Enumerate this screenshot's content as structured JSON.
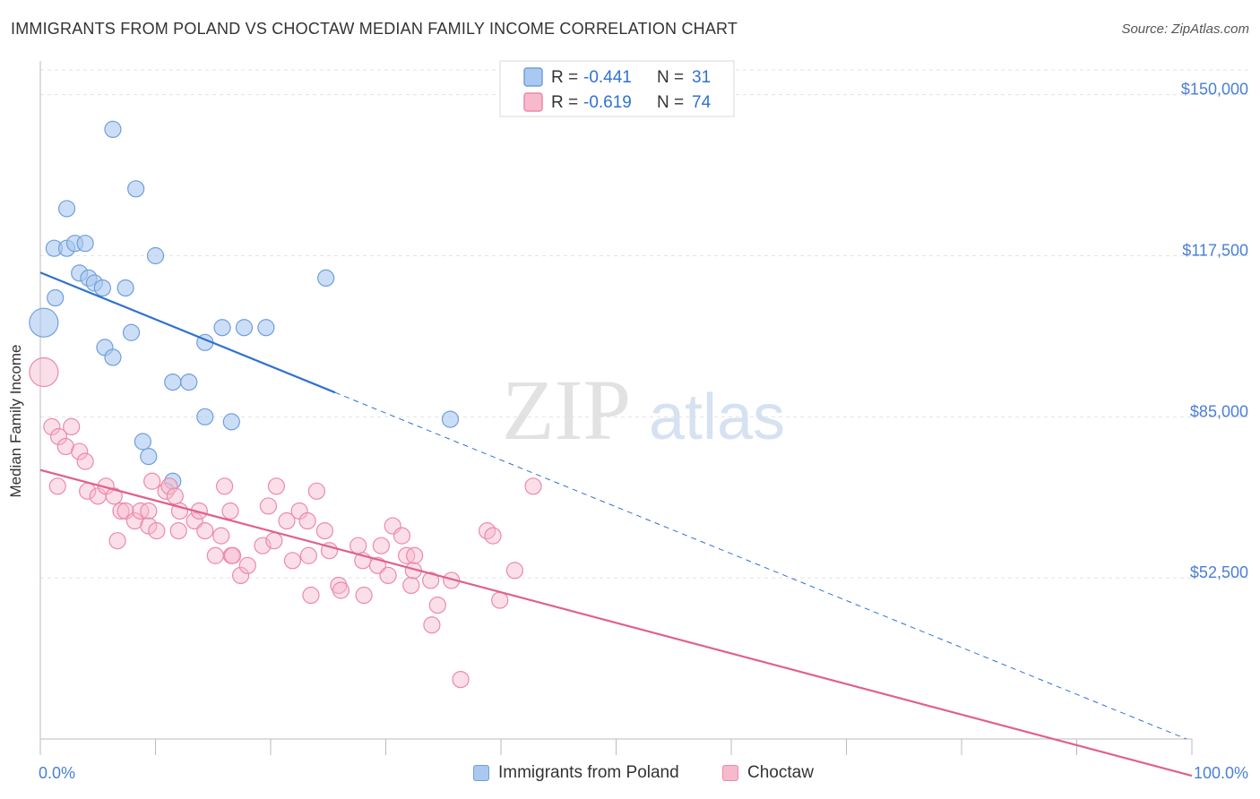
{
  "header": {
    "title": "IMMIGRANTS FROM POLAND VS CHOCTAW MEDIAN FAMILY INCOME CORRELATION CHART",
    "source": "Source: ZipAtlas.com"
  },
  "watermark": {
    "zip": "ZIP",
    "atlas": "atlas"
  },
  "legend": {
    "rows": [
      {
        "r_label": "R = ",
        "r_value": "-0.441",
        "n_label": "N = ",
        "n_value": "31"
      },
      {
        "r_label": "R = ",
        "r_value": "-0.619",
        "n_label": "N = ",
        "n_value": "74"
      }
    ]
  },
  "colors": {
    "poland_fill": "#aac8f0",
    "poland_stroke": "#6f9fdc",
    "poland_line": "#2f72d0",
    "choctaw_fill": "#f7b9cc",
    "choctaw_stroke": "#ec8aa8",
    "choctaw_line": "#e0608d",
    "axis_text": "#4a7fd4"
  },
  "chart_data": {
    "type": "scatter",
    "title": "IMMIGRANTS FROM POLAND VS CHOCTAW MEDIAN FAMILY INCOME CORRELATION CHART",
    "xlabel": "",
    "ylabel": "Median Family Income",
    "xlim": [
      0,
      100
    ],
    "ylim": [
      20000,
      155000
    ],
    "x_tick_labels": [
      "0.0%",
      "100.0%"
    ],
    "y_ticks": [
      52500,
      85000,
      117500,
      150000
    ],
    "y_tick_labels": [
      "$52,500",
      "$85,000",
      "$117,500",
      "$150,000"
    ],
    "grid": true,
    "series": [
      {
        "name": "Immigrants from Poland",
        "r": -0.441,
        "n": 31,
        "points": [
          [
            0.3,
            104000,
            16
          ],
          [
            1.2,
            119000,
            9
          ],
          [
            1.3,
            109000,
            9
          ],
          [
            2.3,
            119000,
            9
          ],
          [
            2.3,
            127000,
            9
          ],
          [
            3.0,
            120000,
            9
          ],
          [
            3.4,
            114000,
            9
          ],
          [
            3.9,
            120000,
            9
          ],
          [
            4.2,
            113000,
            9
          ],
          [
            4.7,
            112000,
            9
          ],
          [
            5.4,
            111000,
            9
          ],
          [
            5.6,
            99000,
            9
          ],
          [
            6.3,
            143000,
            9
          ],
          [
            6.3,
            97000,
            9
          ],
          [
            7.4,
            111000,
            9
          ],
          [
            7.9,
            102000,
            9
          ],
          [
            8.3,
            131000,
            9
          ],
          [
            8.9,
            80000,
            9
          ],
          [
            9.4,
            77000,
            9
          ],
          [
            10.0,
            117500,
            9
          ],
          [
            11.5,
            92000,
            9
          ],
          [
            11.5,
            72000,
            9
          ],
          [
            12.9,
            92000,
            9
          ],
          [
            14.3,
            100000,
            9
          ],
          [
            14.3,
            85000,
            9
          ],
          [
            15.8,
            103000,
            9
          ],
          [
            16.6,
            84000,
            9
          ],
          [
            17.7,
            103000,
            9
          ],
          [
            19.6,
            103000,
            9
          ],
          [
            24.8,
            113000,
            9
          ],
          [
            35.6,
            84500,
            9
          ]
        ]
      },
      {
        "name": "Choctaw",
        "r": -0.619,
        "n": 74,
        "points": [
          [
            0.3,
            94000,
            16
          ],
          [
            1.0,
            83000,
            9
          ],
          [
            1.5,
            71000,
            9
          ],
          [
            1.6,
            81000,
            9
          ],
          [
            2.2,
            79000,
            9
          ],
          [
            2.7,
            83000,
            9
          ],
          [
            3.4,
            78000,
            9
          ],
          [
            3.9,
            76000,
            9
          ],
          [
            4.1,
            70000,
            9
          ],
          [
            5.0,
            69000,
            9
          ],
          [
            5.7,
            71000,
            9
          ],
          [
            6.4,
            69000,
            9
          ],
          [
            6.7,
            60000,
            9
          ],
          [
            7.0,
            66000,
            9
          ],
          [
            7.4,
            66000,
            9
          ],
          [
            8.2,
            64000,
            9
          ],
          [
            8.7,
            66000,
            9
          ],
          [
            9.4,
            66000,
            9
          ],
          [
            9.4,
            63000,
            9
          ],
          [
            9.7,
            72000,
            9
          ],
          [
            10.1,
            62000,
            9
          ],
          [
            10.9,
            70000,
            9
          ],
          [
            11.2,
            71000,
            9
          ],
          [
            11.7,
            69000,
            9
          ],
          [
            12.0,
            62000,
            9
          ],
          [
            12.1,
            66000,
            9
          ],
          [
            13.4,
            64000,
            9
          ],
          [
            13.8,
            66000,
            9
          ],
          [
            14.3,
            62000,
            9
          ],
          [
            15.2,
            57000,
            9
          ],
          [
            15.7,
            61000,
            9
          ],
          [
            16.0,
            71000,
            9
          ],
          [
            16.5,
            66000,
            9
          ],
          [
            16.6,
            57000,
            9
          ],
          [
            16.7,
            57000,
            9
          ],
          [
            17.4,
            53000,
            9
          ],
          [
            18.0,
            55000,
            9
          ],
          [
            19.3,
            59000,
            9
          ],
          [
            19.8,
            67000,
            9
          ],
          [
            20.3,
            60000,
            9
          ],
          [
            20.5,
            71000,
            9
          ],
          [
            21.4,
            64000,
            9
          ],
          [
            21.9,
            56000,
            9
          ],
          [
            22.5,
            66000,
            9
          ],
          [
            23.2,
            64000,
            9
          ],
          [
            23.3,
            57000,
            9
          ],
          [
            23.5,
            49000,
            9
          ],
          [
            24.0,
            70000,
            9
          ],
          [
            24.7,
            62000,
            9
          ],
          [
            25.1,
            58000,
            9
          ],
          [
            25.9,
            51000,
            9
          ],
          [
            26.1,
            50000,
            9
          ],
          [
            27.6,
            59000,
            9
          ],
          [
            28.0,
            56000,
            9
          ],
          [
            28.1,
            49000,
            9
          ],
          [
            29.3,
            55000,
            9
          ],
          [
            29.6,
            59000,
            9
          ],
          [
            30.2,
            53000,
            9
          ],
          [
            30.6,
            63000,
            9
          ],
          [
            31.4,
            61000,
            9
          ],
          [
            31.8,
            57000,
            9
          ],
          [
            32.2,
            51000,
            9
          ],
          [
            32.4,
            54000,
            9
          ],
          [
            32.5,
            57000,
            9
          ],
          [
            33.9,
            52000,
            9
          ],
          [
            34.0,
            43000,
            9
          ],
          [
            34.5,
            47000,
            9
          ],
          [
            35.7,
            52000,
            9
          ],
          [
            36.5,
            32000,
            9
          ],
          [
            38.8,
            62000,
            9
          ],
          [
            39.3,
            61000,
            9
          ],
          [
            39.9,
            48000,
            9
          ],
          [
            41.2,
            54000,
            9
          ],
          [
            42.8,
            71000,
            9
          ]
        ]
      }
    ]
  },
  "bottom_legend": {
    "items": [
      {
        "label": "Immigrants from Poland"
      },
      {
        "label": "Choctaw"
      }
    ]
  }
}
